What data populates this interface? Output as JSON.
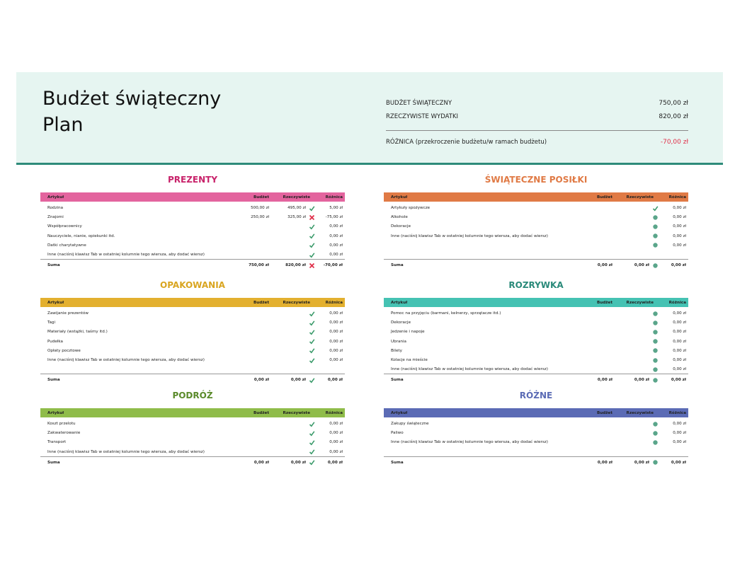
{
  "header": {
    "title": [
      "Budżet świąteczny",
      "Plan"
    ],
    "summary": [
      {
        "label": "BUDŻET ŚWIĄTECZNY",
        "value": "750,00 zł"
      },
      {
        "label": "RZECZYWISTE WYDATKI",
        "value": "820,00 zł"
      },
      {
        "label": "RÓŻNICA (przekroczenie budżetu/w ramach budżetu)",
        "value": "-70,00 zł",
        "color": "#e0304a"
      }
    ]
  },
  "sections": [
    {
      "title": "PREZENTY",
      "title_color": "#c8226a",
      "color": "#e3649e",
      "columns": [
        "Artykuł",
        "Budżet",
        "Rzeczywiste",
        "Różnica"
      ],
      "rows": [
        [
          "Rodzina",
          "500,00 zł",
          "495,00 zł",
          "check",
          "5,00 zł"
        ],
        [
          "Znajomi",
          "250,00 zł",
          "325,00 zł",
          "cross",
          "-75,00 zł"
        ],
        [
          "Współpracownicy",
          null,
          null,
          "check",
          "0,00 zł"
        ],
        [
          "Nauczyciele, nianie, opiekunki itd.",
          null,
          null,
          "check",
          "0,00 zł"
        ],
        [
          "Datki charytatywne",
          null,
          null,
          "check",
          "0,00 zł"
        ],
        [
          "Inne (naciśnij klawisz Tab w ostatniej kolumnie tego wiersza, aby dodać wiersz)",
          null,
          null,
          "check",
          "0,00 zł"
        ]
      ],
      "total": [
        "Suma",
        "750,00 zł",
        "820,00 zł",
        "cross",
        "-70,00 zł"
      ]
    },
    {
      "title": "ŚWIĄTECZNE POSIŁKI",
      "title_color": "#e07a45",
      "color": "#e07a45",
      "columns": [
        "Artykuł",
        "Budżet",
        "Rzeczywiste",
        "Różnica"
      ],
      "rows": [
        [
          "Artykuły spożywcze",
          null,
          null,
          "check",
          "0,00 zł"
        ],
        [
          "Alkohole",
          null,
          null,
          "dot",
          "0,00 zł"
        ],
        [
          "Dekoracje",
          null,
          null,
          "dot",
          "0,00 zł"
        ],
        [
          "Inne (naciśnij klawisz Tab w ostatniej kolumnie tego wiersza, aby dodać wiersz)",
          null,
          null,
          "dot",
          "0,00 zł"
        ],
        [
          null,
          null,
          null,
          "dot",
          "0,00 zł"
        ]
      ],
      "total": [
        "Suma",
        "0,00 zł",
        "0,00 zł",
        "dot",
        "0,00 zł"
      ]
    },
    {
      "title": "OPAKOWANIA",
      "title_color": "#d9a520",
      "color": "#e3b02f",
      "columns": [
        "Artykuł",
        "Budżet",
        "Rzeczywiste",
        "Różnica"
      ],
      "rows": [
        [
          "Zawijanie prezentów",
          null,
          null,
          "check",
          "0,00 zł"
        ],
        [
          "Tagi",
          null,
          null,
          "check",
          "0,00 zł"
        ],
        [
          "Materiały (wstążki, taśmy itd.)",
          null,
          null,
          "check",
          "0,00 zł"
        ],
        [
          "Pudełka",
          null,
          null,
          "check",
          "0,00 zł"
        ],
        [
          "Opłaty pocztowe",
          null,
          null,
          "check",
          "0,00 zł"
        ],
        [
          "Inne (naciśnij klawisz Tab w ostatniej kolumnie tego wiersza, aby dodać wiersz)",
          null,
          null,
          "check",
          "0,00 zł"
        ]
      ],
      "total": [
        "Suma",
        "0,00 zł",
        "0,00 zł",
        "check",
        "0,00 zł"
      ]
    },
    {
      "title": "ROZRYWKA",
      "title_color": "#2a8a7a",
      "color": "#45c2b3",
      "columns": [
        "Artykuł",
        "Budżet",
        "Rzeczywiste",
        "Różnica"
      ],
      "rows": [
        [
          "Pomoc na przyjęciu (barmani, kelnerzy, sprzątacze itd.)",
          null,
          null,
          "dot",
          "0,00 zł"
        ],
        [
          "Dekoracje",
          null,
          null,
          "dot",
          "0,00 zł"
        ],
        [
          "Jedzenie i napoje",
          null,
          null,
          "dot",
          "0,00 zł"
        ],
        [
          "Ubrania",
          null,
          null,
          "dot",
          "0,00 zł"
        ],
        [
          "Bilety",
          null,
          null,
          "dot",
          "0,00 zł"
        ],
        [
          "Kolacje na mieście",
          null,
          null,
          "dot",
          "0,00 zł"
        ],
        [
          "Inne (naciśnij klawisz Tab w ostatniej kolumnie tego wiersza, aby dodać wiersz)",
          null,
          null,
          "dot",
          "0,00 zł"
        ]
      ],
      "total": [
        "Suma",
        "0,00 zł",
        "0,00 zł",
        "dot",
        "0,00 zł"
      ]
    },
    {
      "title": "PODRÓŻ",
      "title_color": "#5a8a2a",
      "color": "#8fbc4a",
      "columns": [
        "Artykuł",
        "Budżet",
        "Rzeczywiste",
        "Różnica"
      ],
      "rows": [
        [
          "Koszt przelotu",
          null,
          null,
          "check",
          "0,00 zł"
        ],
        [
          "Zakwaterowanie",
          null,
          null,
          "check",
          "0,00 zł"
        ],
        [
          "Transport",
          null,
          null,
          "check",
          "0,00 zł"
        ],
        [
          "Inne (naciśnij klawisz Tab w ostatniej kolumnie tego wiersza, aby dodać wiersz)",
          null,
          null,
          "check",
          "0,00 zł"
        ]
      ],
      "total": [
        "Suma",
        "0,00 zł",
        "0,00 zł",
        "check",
        "0,00 zł"
      ]
    },
    {
      "title": "RÓŻNE",
      "title_color": "#5b6bb5",
      "color": "#5b6bb5",
      "columns": [
        "Artykuł",
        "Budżet",
        "Rzeczywiste",
        "Różnica"
      ],
      "rows": [
        [
          "Zakupy świąteczne",
          null,
          null,
          "dot",
          "0,00 zł"
        ],
        [
          "Paliwo",
          null,
          null,
          "dot",
          "0,00 zł"
        ],
        [
          "Inne (naciśnij klawisz Tab w ostatniej kolumnie tego wiersza, aby dodać wiersz)",
          null,
          null,
          "dot",
          "0,00 zł"
        ]
      ],
      "total": [
        "Suma",
        "0,00 zł",
        "0,00 zł",
        "dot",
        "0,00 zł"
      ]
    }
  ]
}
